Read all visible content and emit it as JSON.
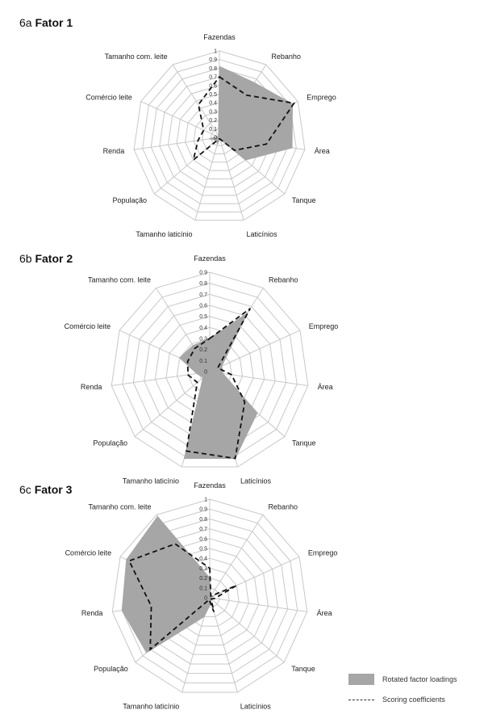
{
  "legend": {
    "loadings_label": "Rotated factor loadings",
    "scoring_label": "Scoring coefficients"
  },
  "colors": {
    "loadings_fill": "#a6a6a6",
    "scoring_line": "#111111",
    "grid": "#c8c8c8"
  },
  "chart_data": [
    {
      "type": "radar",
      "panel_prefix": "6a",
      "title": "Fator 1",
      "categories": [
        "Fazendas",
        "Rebanho",
        "Emprego",
        "Área",
        "Tanque",
        "Laticínios",
        "Tamanho laticínio",
        "População",
        "Renda",
        "Comércio leite",
        "Tamanho com. leite"
      ],
      "ticks": [
        "0",
        "0.1",
        "0.2",
        "0.3",
        "0.4",
        "0.5",
        "0.6",
        "0.7",
        "0.8",
        "0.9",
        "1"
      ],
      "rlim": [
        0,
        1
      ],
      "grid": true,
      "series": [
        {
          "name": "Rotated factor loadings",
          "style": "filled",
          "values": [
            0.82,
            0.75,
            0.93,
            0.85,
            0.4,
            0.02,
            0.08,
            0.05,
            0.12,
            0.02,
            0.02
          ]
        },
        {
          "name": "Scoring coefficients",
          "style": "dashed",
          "values": [
            0.7,
            0.58,
            0.95,
            0.55,
            0.23,
            0.02,
            0.02,
            0.4,
            0.25,
            0.2,
            0.45
          ]
        }
      ]
    },
    {
      "type": "radar",
      "panel_prefix": "6b",
      "title": "Fator 2",
      "categories": [
        "Fazendas",
        "Rebanho",
        "Emprego",
        "Área",
        "Tanque",
        "Laticínios",
        "Tamanho laticínio",
        "População",
        "Renda",
        "Comércio leite",
        "Tamanho com. leite"
      ],
      "ticks": [
        "0",
        "0.1",
        "0.2",
        "0.3",
        "0.4",
        "0.5",
        "0.6",
        "0.7",
        "0.8",
        "0.9"
      ],
      "rlim": [
        0,
        0.9
      ],
      "grid": true,
      "series": [
        {
          "name": "Rotated factor loadings",
          "style": "filled",
          "values": [
            0.3,
            0.63,
            0.12,
            0.12,
            0.57,
            0.82,
            0.82,
            0.08,
            0.12,
            0.3,
            0.28
          ]
        },
        {
          "name": "Scoring coefficients",
          "style": "dashed",
          "values": [
            0.3,
            0.68,
            0.08,
            0.2,
            0.42,
            0.82,
            0.75,
            0.15,
            0.2,
            0.22,
            0.25
          ]
        }
      ]
    },
    {
      "type": "radar",
      "panel_prefix": "6c",
      "title": "Fator 3",
      "categories": [
        "Fazendas",
        "Rebanho",
        "Emprego",
        "Área",
        "Tanque",
        "Laticínios",
        "Tamanho laticínio",
        "População",
        "Renda",
        "Comércio leite",
        "Tamanho com. leite"
      ],
      "ticks": [
        "0",
        "0.1",
        "0.2",
        "0.3",
        "0.4",
        "0.5",
        "0.6",
        "0.7",
        "0.8",
        "0.9",
        "1"
      ],
      "rlim": [
        0,
        1
      ],
      "grid": true,
      "series": [
        {
          "name": "Rotated factor loadings",
          "style": "filled",
          "values": [
            0.2,
            0.02,
            0.05,
            0.02,
            0.02,
            0.05,
            0.2,
            0.85,
            0.9,
            0.93,
            0.98
          ]
        },
        {
          "name": "Scoring coefficients",
          "style": "dashed",
          "values": [
            0.3,
            0.02,
            0.3,
            0.05,
            0.02,
            0.15,
            0.02,
            0.8,
            0.6,
            0.9,
            0.65
          ]
        }
      ]
    }
  ]
}
